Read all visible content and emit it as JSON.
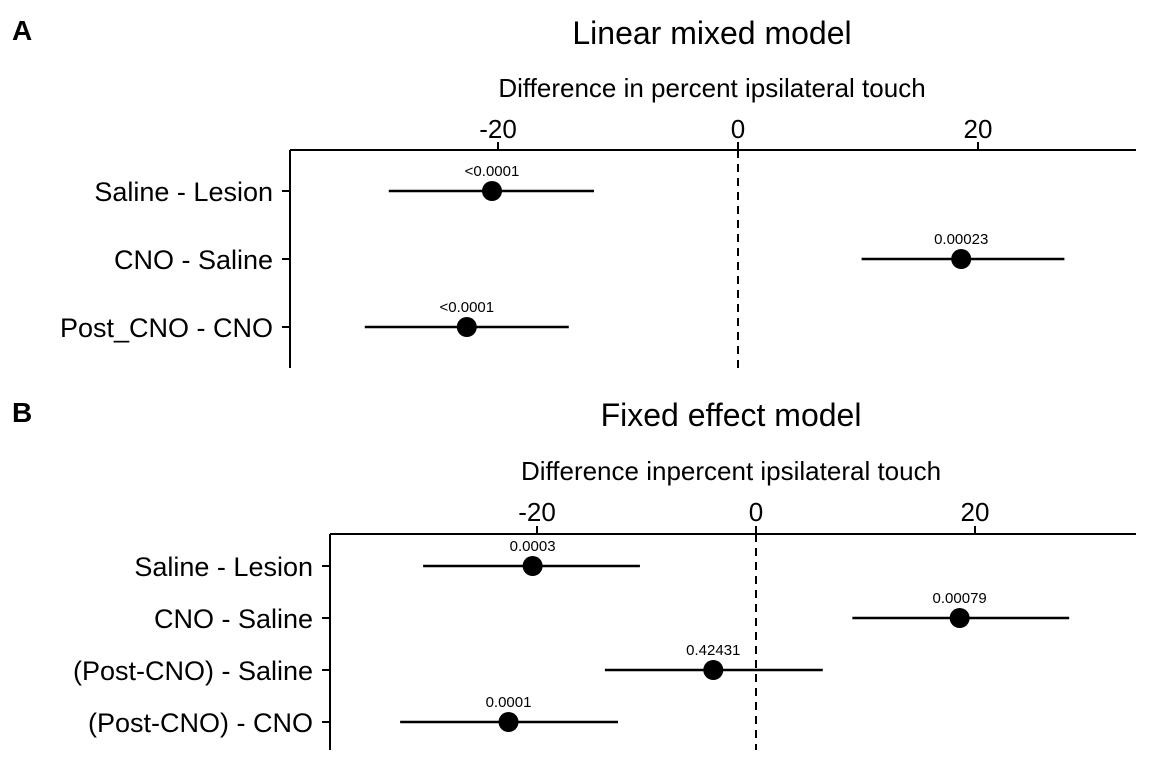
{
  "chart_data": [
    {
      "type": "forest",
      "panel_letter": "A",
      "title": "Linear mixed model",
      "xlabel": "Difference in percent ipsilateral touch",
      "x_axis_position": "top",
      "xlim": [
        -37,
        33
      ],
      "xticks": [
        -20,
        0,
        20
      ],
      "reference_line": 0,
      "categories": [
        "Saline - Lesion",
        "CNO - Saline",
        "Post_CNO - CNO"
      ],
      "estimates": [
        -20.5,
        18.6,
        -22.6
      ],
      "ci_low": [
        -29.1,
        10.3,
        -31.1
      ],
      "ci_high": [
        -12.0,
        27.2,
        -14.1
      ],
      "p_values": [
        "<0.0001",
        "0.00023",
        "<0.0001"
      ]
    },
    {
      "type": "forest",
      "panel_letter": "B",
      "title": "Fixed effect model",
      "xlabel": "Difference inpercent ipsilateral touch",
      "x_axis_position": "top",
      "xlim": [
        -39,
        35
      ],
      "xticks": [
        -20,
        0,
        20
      ],
      "reference_line": 0,
      "categories": [
        "Saline - Lesion",
        "CNO - Saline",
        "(Post-CNO) - Saline",
        "(Post-CNO) - CNO"
      ],
      "estimates": [
        -20.4,
        18.6,
        -3.9,
        -22.6
      ],
      "ci_low": [
        -30.4,
        8.8,
        -13.8,
        -32.5
      ],
      "ci_high": [
        -10.6,
        28.6,
        6.1,
        -12.6
      ],
      "p_values": [
        "0.0003",
        "0.00079",
        "0.42431",
        "0.0001"
      ]
    }
  ]
}
